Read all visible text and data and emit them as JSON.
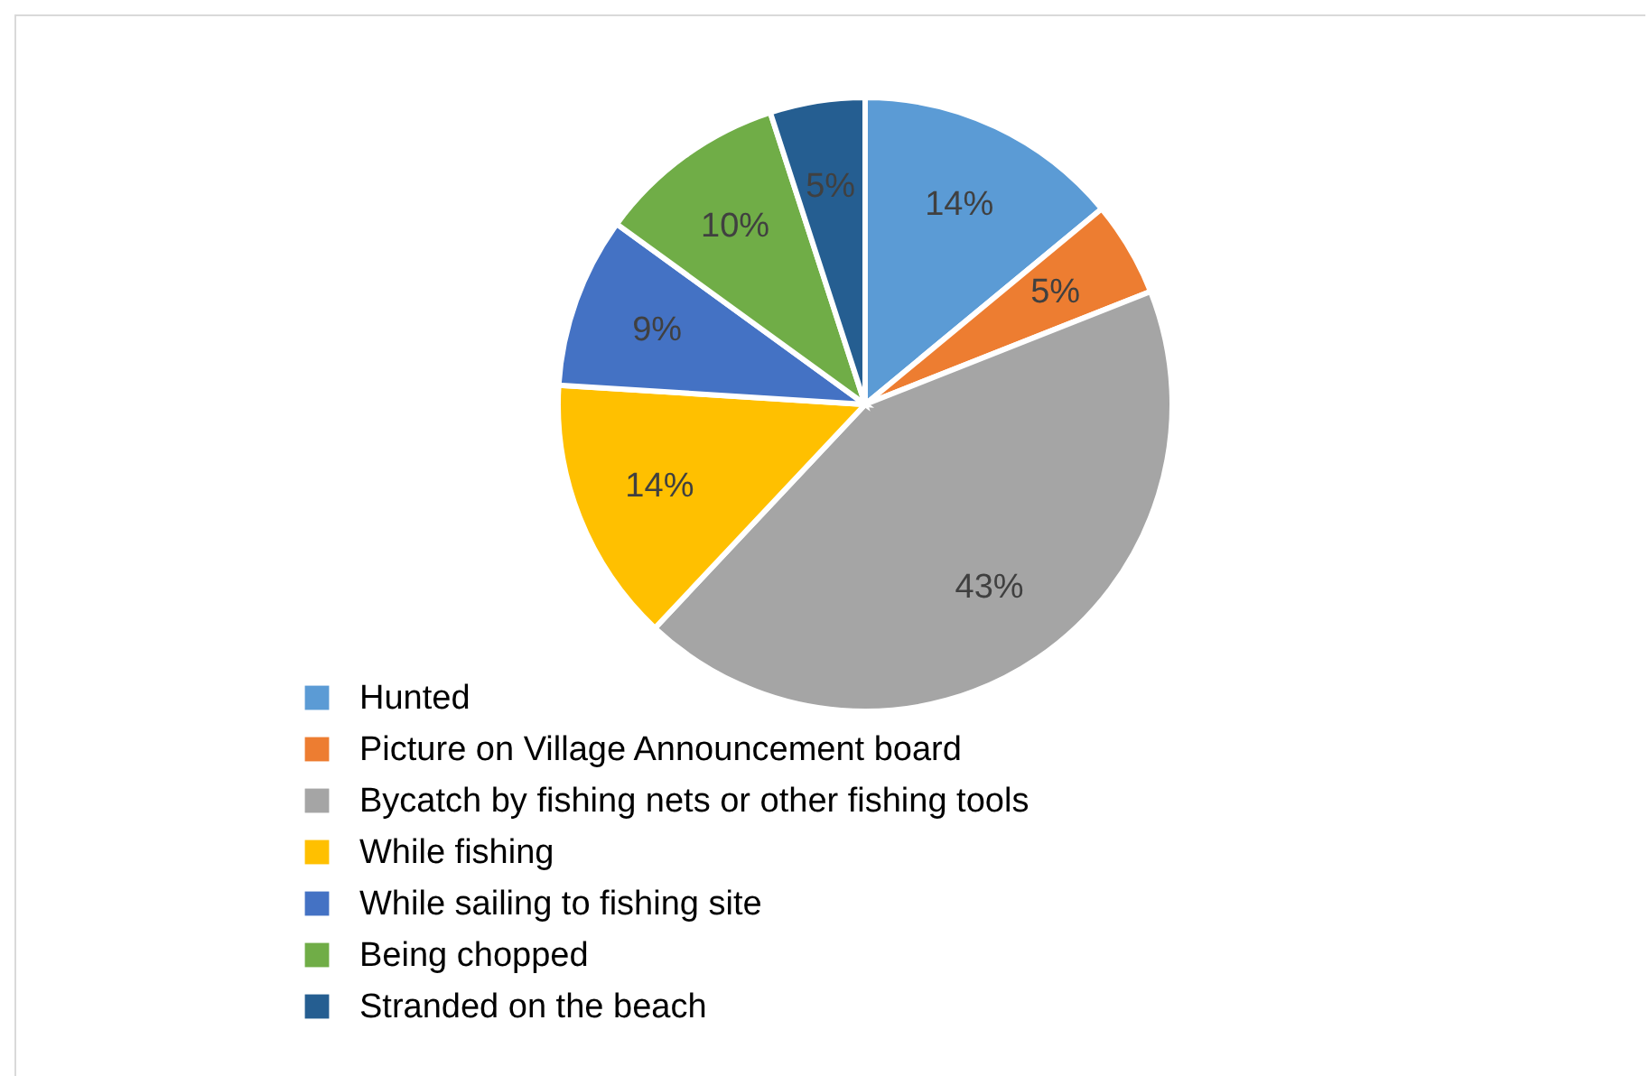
{
  "chart_data": {
    "type": "pie",
    "categories": [
      "Hunted",
      "Picture on Village Announcement board",
      "Bycatch by fishing nets or other fishing tools",
      "While fishing",
      "While sailing to fishing site",
      "Being chopped",
      "Stranded on the beach"
    ],
    "values": [
      14,
      5,
      43,
      14,
      9,
      10,
      5
    ],
    "colors": [
      "#5b9bd5",
      "#ed7d31",
      "#a5a5a5",
      "#ffc000",
      "#4472c4",
      "#70ad47",
      "#255e91"
    ],
    "value_labels": [
      "14%",
      "5%",
      "43%",
      "14%",
      "9%",
      "10%",
      "5%"
    ],
    "legend": "bottom left"
  }
}
